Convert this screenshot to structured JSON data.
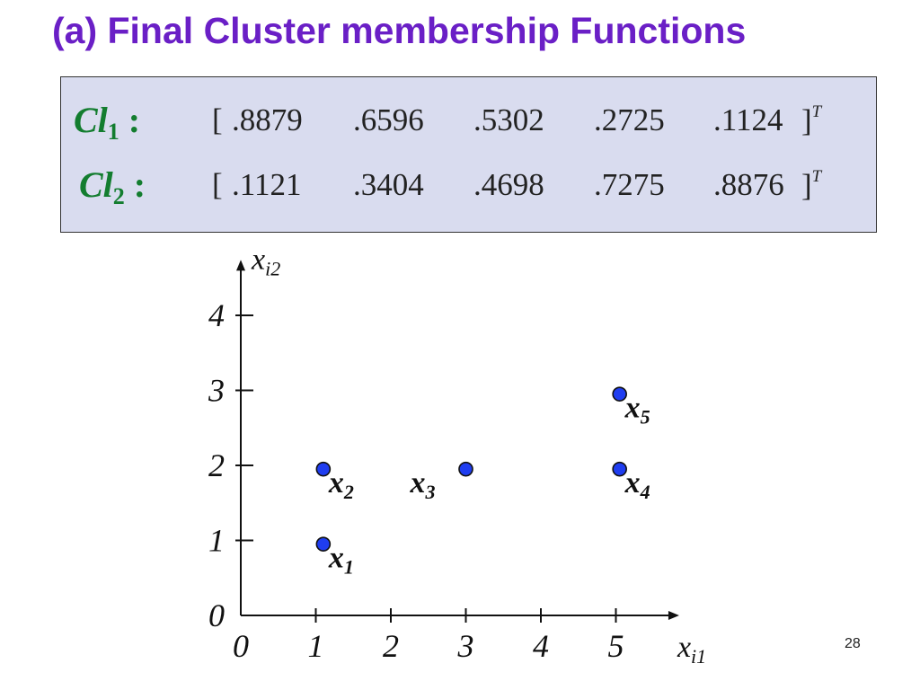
{
  "slide": {
    "title": "(a) Final Cluster membership Functions",
    "page_number": "28"
  },
  "membership": {
    "rows": [
      {
        "label": "Cl",
        "subscript": "1",
        "colon": ":",
        "open_bracket": "[",
        "values": [
          ".8879",
          ".6596",
          ".5302",
          ".2725",
          ".1124"
        ],
        "close_bracket": "]",
        "superscript": "T"
      },
      {
        "label": "Cl",
        "subscript": "2",
        "colon": ":",
        "open_bracket": "[",
        "values": [
          ".1121",
          ".3404",
          ".4698",
          ".7275",
          ".8876"
        ],
        "close_bracket": "]",
        "superscript": "T"
      }
    ]
  },
  "colors": {
    "title": "#6a1fc6",
    "cluster_label": "#137d2f",
    "box_background": "#d9dcef",
    "point_fill": "#1f3df0"
  },
  "chart_data": {
    "type": "scatter",
    "title": "",
    "xlabel": {
      "base": "x",
      "sub": "i1"
    },
    "ylabel": {
      "base": "x",
      "sub": "i2"
    },
    "xlim": [
      0,
      5.7
    ],
    "ylim": [
      0,
      4.5
    ],
    "x_ticks": [
      "0",
      "1",
      "2",
      "3",
      "4",
      "5"
    ],
    "y_ticks": [
      "0",
      "1",
      "2",
      "3",
      "4"
    ],
    "grid": false,
    "points": [
      {
        "base": "x",
        "sub": "1",
        "x": 1.1,
        "y": 0.95,
        "label_side": "right-below"
      },
      {
        "base": "x",
        "sub": "2",
        "x": 1.1,
        "y": 1.95,
        "label_side": "right-below"
      },
      {
        "base": "x",
        "sub": "3",
        "x": 3.0,
        "y": 1.95,
        "label_side": "left-below"
      },
      {
        "base": "x",
        "sub": "4",
        "x": 5.05,
        "y": 1.95,
        "label_side": "right-below"
      },
      {
        "base": "x",
        "sub": "5",
        "x": 5.05,
        "y": 2.95,
        "label_side": "right-below"
      }
    ]
  }
}
